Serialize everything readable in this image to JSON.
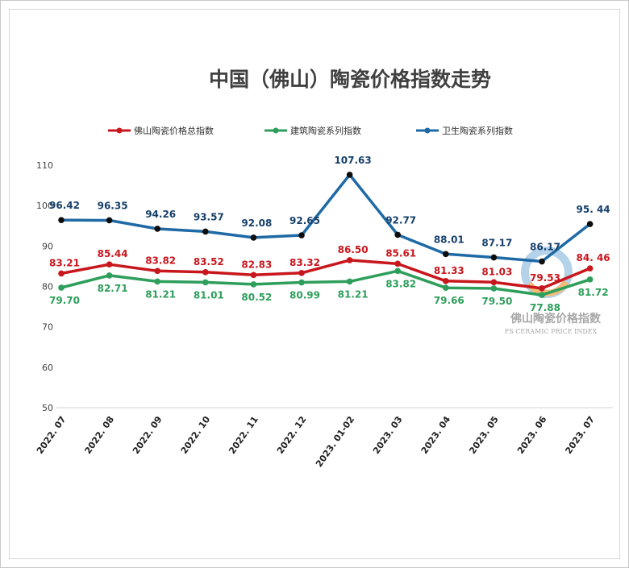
{
  "chart_data": {
    "type": "line",
    "title": "中国（佛山）陶瓷价格指数走势",
    "categories": [
      "2022. 07",
      "2022. 08",
      "2022. 09",
      "2022. 10",
      "2022. 11",
      "2022. 12",
      "2023. 01-02",
      "2023. 03",
      "2023. 04",
      "2023. 05",
      "2023. 06",
      "2023. 07"
    ],
    "y_ticks": [
      "110",
      "100",
      "90",
      "80",
      "70",
      "60",
      "50"
    ],
    "ylim": [
      50,
      110
    ],
    "grid": false,
    "legend_position": "top",
    "series": [
      {
        "name": "佛山陶瓷价格总指数",
        "color": "#c8161d",
        "values": [
          83.21,
          85.44,
          83.82,
          83.52,
          82.83,
          83.32,
          86.5,
          85.61,
          81.33,
          81.03,
          79.53,
          84.46
        ],
        "labels": [
          "83.21",
          "85.44",
          "83.82",
          "83.52",
          "82.83",
          "83.32",
          "86.50",
          "85.61",
          "81.33",
          "81.03",
          "79.53",
          "84. 46"
        ]
      },
      {
        "name": "建筑陶瓷系列指数",
        "color": "#2e9e5b",
        "values": [
          79.7,
          82.71,
          81.21,
          81.01,
          80.52,
          80.99,
          81.21,
          83.82,
          79.66,
          79.5,
          77.88,
          81.72
        ],
        "labels": [
          "79.70",
          "82.71",
          "81.21",
          "81.01",
          "80.52",
          "80.99",
          "81.21",
          "83.82",
          "79.66",
          "79.50",
          "77.88",
          "81.72"
        ]
      },
      {
        "name": "卫生陶瓷系列指数",
        "color": "#1f6aa5",
        "values": [
          96.42,
          96.35,
          94.26,
          93.57,
          92.08,
          92.65,
          107.63,
          92.77,
          88.01,
          87.17,
          86.17,
          95.44
        ],
        "labels": [
          "96.42",
          "96.35",
          "94.26",
          "93.57",
          "92.08",
          "92.65",
          "107.63",
          "92.77",
          "88.01",
          "87.17",
          "86.17",
          "95. 44"
        ]
      }
    ]
  },
  "watermark": {
    "line1": "佛山陶瓷价格指数",
    "line2": "FS CERAMIC PRICE INDEX"
  }
}
